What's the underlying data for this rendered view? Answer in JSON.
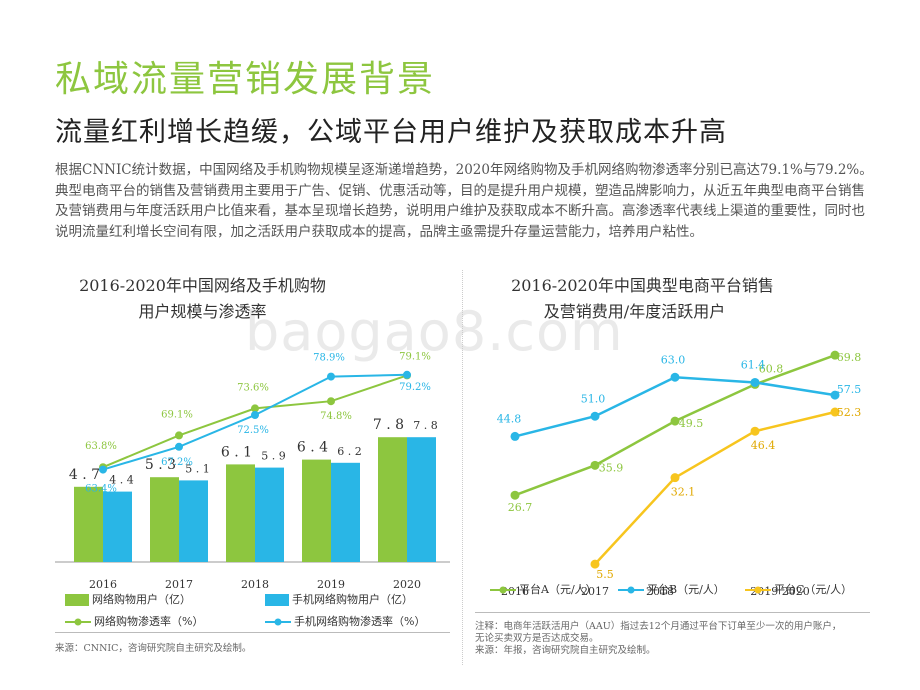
{
  "title": "私域流量营销发展背景",
  "subtitle": "流量红利增长趋缓，公域平台用户维护及获取成本升高",
  "body": "根据CNNIC统计数据，中国网络及手机购物规模呈逐渐递增趋势，2020年网络购物及手机网络购物渗透率分别已高达79.1%与79.2%。典型电商平台的销售及营销费用主要用于广告、促销、优惠活动等，目的是提升用户规模，塑造品牌影响力，从近五年典型电商平台销售及营销费用与年度活跃用户比值来看，基本呈现增长趋势，说明用户维护及获取成本不断升高。高渗透率代表线上渠道的重要性，同时也说明流量红利增长空间有限，加之活跃用户获取成本的提高，品牌主亟需提升存量运营能力，培养用户粘性。",
  "watermark": "baogao8.com",
  "colors": {
    "green": "#8dc63f",
    "blue": "#29b6e6",
    "yellow": "#f7c51e"
  },
  "left": {
    "title_line1": "2016-2020年中国网络及手机购物",
    "title_line2": "用户规模与渗透率",
    "legend": {
      "bar_green": "网络购物用户（亿）",
      "bar_blue": "手机网络购物用户（亿）",
      "line_green": "网络购物渗透率（%）",
      "line_blue": "手机网络购物渗透率（%）"
    },
    "source": "来源：CNNIC，咨询研究院自主研究及绘制。"
  },
  "right": {
    "title_line1": "2016-2020年中国典型电商平台销售",
    "title_line2": "及营销费用/年度活跃用户",
    "legend": {
      "a": "平台A（元/人）",
      "b": "平台B（元/人）",
      "c": "平台C（元/人）"
    },
    "note1": "注释：电商年活跃活用户（AAU）指过去12个月通过平台下订单至少一次的用户账户，",
    "note2": "无论买卖双方是否达成交易。",
    "source": "来源：年报，咨询研究院自主研究及绘制。"
  },
  "chart_data": [
    {
      "type": "bar",
      "categories": [
        "2016",
        "2017",
        "2018",
        "2019",
        "2020"
      ],
      "series": [
        {
          "name": "网络购物用户（亿）",
          "values": [
            4.7,
            5.3,
            6.1,
            6.4,
            7.8
          ],
          "labels": [
            "4.7",
            "5.3",
            "6.1",
            "6.4",
            "7.8"
          ]
        },
        {
          "name": "手机网络购物用户（亿）",
          "values": [
            4.4,
            5.1,
            5.9,
            6.2,
            7.8
          ],
          "labels": [
            "4.4",
            "5.1",
            "5.9",
            "6.2",
            "7.8"
          ]
        },
        {
          "name": "网络购物渗透率（%）",
          "type": "line",
          "values": [
            63.8,
            69.1,
            73.6,
            74.8,
            79.1
          ],
          "labels": [
            "63.8%",
            "69.1%",
            "73.6%",
            "74.8%",
            "79.1%"
          ]
        },
        {
          "name": "手机网络购物渗透率（%）",
          "type": "line",
          "values": [
            63.4,
            67.2,
            72.5,
            78.9,
            79.2
          ],
          "labels": [
            "63.4%",
            "67.2%",
            "72.5%",
            "78.9%",
            "79.2%"
          ]
        }
      ],
      "title": "2016-2020年中国网络及手机购物用户规模与渗透率"
    },
    {
      "type": "line",
      "x": [
        "2016",
        "2017",
        "2018",
        "2019",
        "2020"
      ],
      "x_tick_labels": [
        "2016",
        "2017",
        "2018",
        "2019 2020"
      ],
      "series": [
        {
          "name": "平台A（元/人）",
          "values": [
            26.7,
            35.9,
            49.5,
            60.8,
            69.8
          ],
          "labels": [
            "26.7",
            "35.9",
            "49.5",
            "60.8",
            "69.8"
          ]
        },
        {
          "name": "平台B（元/人）",
          "values": [
            44.8,
            51.0,
            63.0,
            61.4,
            57.5
          ],
          "labels": [
            "44.8",
            "51.0",
            "63.0",
            "61.4",
            "57.5"
          ]
        },
        {
          "name": "平台C（元/人）",
          "values": [
            null,
            5.5,
            32.1,
            46.4,
            52.3
          ],
          "labels": [
            "",
            "5.5",
            "32.1",
            "46.4",
            "52.3"
          ]
        }
      ],
      "title": "2016-2020年中国典型电商平台销售及营销费用/年度活跃用户"
    }
  ]
}
